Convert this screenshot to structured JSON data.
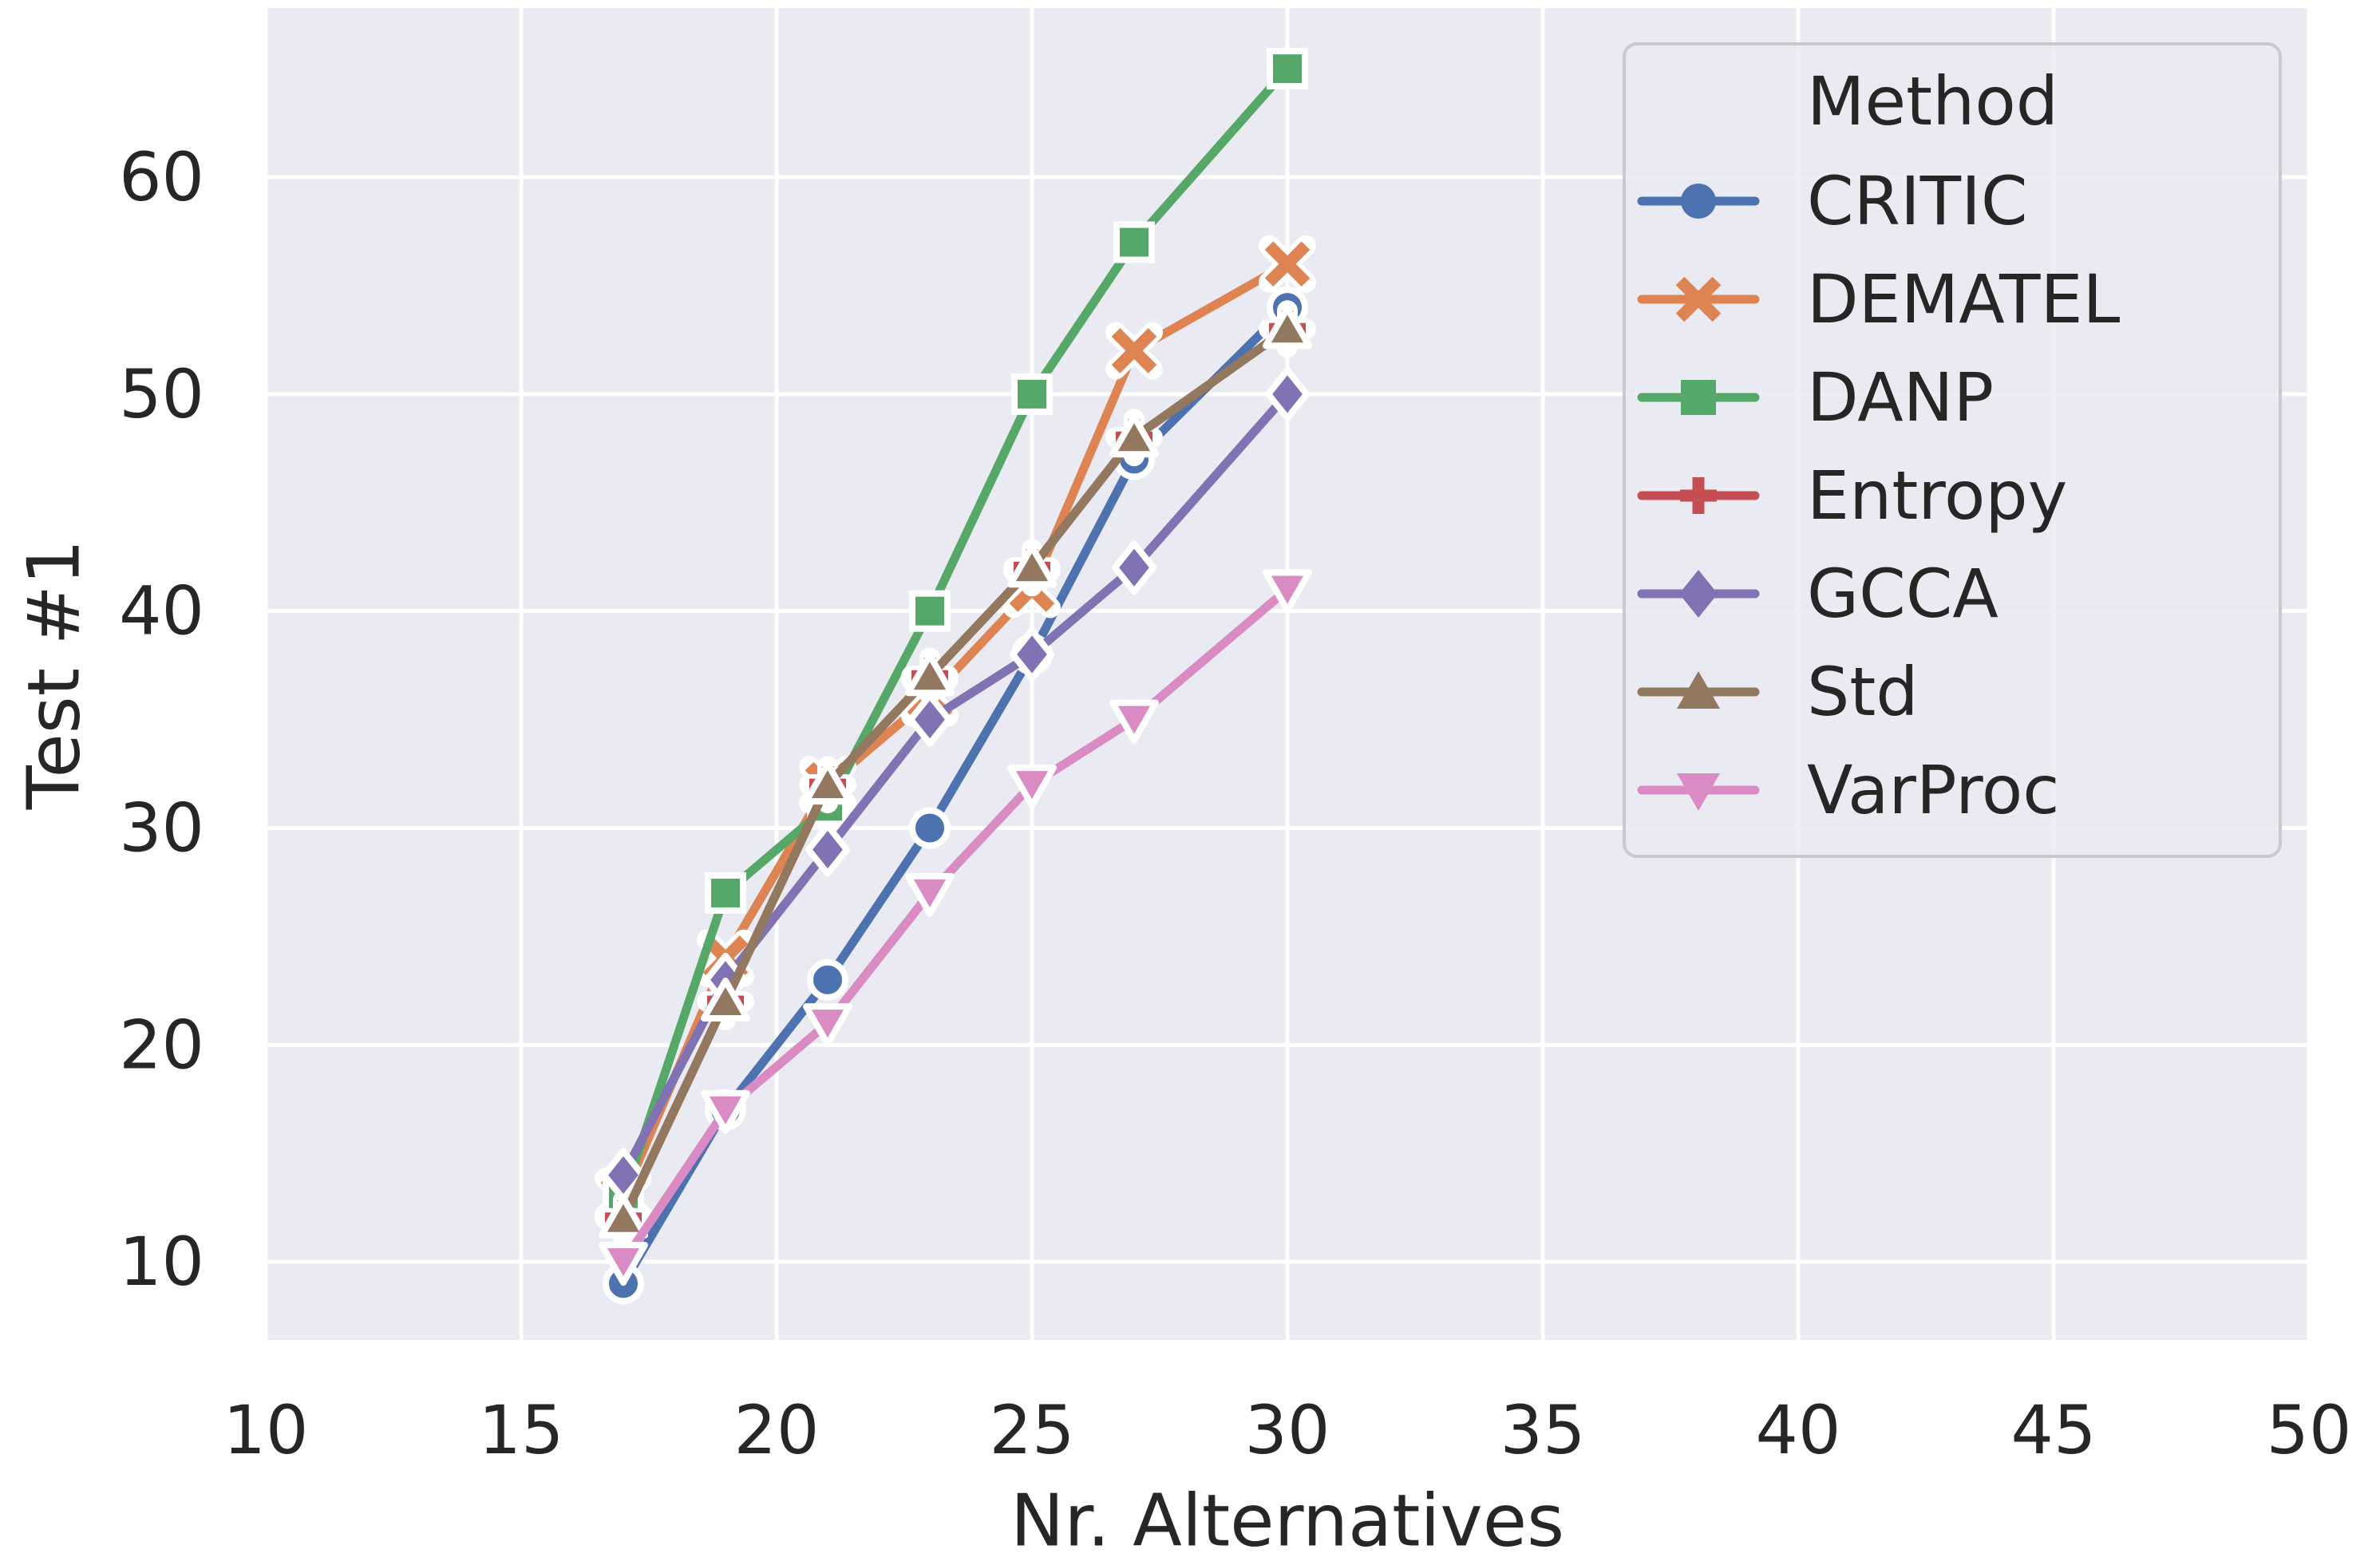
{
  "chart_data": {
    "type": "line",
    "title": "",
    "xlabel": "Nr. Alternatives",
    "ylabel": "Test #1",
    "x": [
      17,
      19,
      21,
      23,
      25,
      27,
      30
    ],
    "series": [
      {
        "name": "CRITIC",
        "color": "#4C72B0",
        "marker": "circle",
        "values": [
          9,
          17,
          23,
          30,
          38,
          47,
          54
        ]
      },
      {
        "name": "DEMATEL",
        "color": "#DD8452",
        "marker": "x",
        "values": [
          13,
          24,
          32,
          36,
          41,
          52,
          56
        ]
      },
      {
        "name": "DANP",
        "color": "#55A868",
        "marker": "square",
        "values": [
          13,
          27,
          31,
          40,
          50,
          57,
          65
        ]
      },
      {
        "name": "Entropy",
        "color": "#C44E52",
        "marker": "plus",
        "values": [
          12,
          22,
          32,
          37,
          42,
          48,
          53
        ]
      },
      {
        "name": "GCCA",
        "color": "#8172B3",
        "marker": "diamond",
        "values": [
          14,
          23,
          29,
          35,
          38,
          42,
          50
        ]
      },
      {
        "name": "Std",
        "color": "#937860",
        "marker": "triangle-up",
        "values": [
          12,
          22,
          32,
          37,
          42,
          48,
          53
        ]
      },
      {
        "name": "VarProc",
        "color": "#DA8BC3",
        "marker": "triangle-down",
        "values": [
          10,
          17,
          21,
          27,
          32,
          35,
          41
        ]
      }
    ],
    "xlim": [
      10,
      50
    ],
    "ylim": [
      6.4,
      67.8
    ],
    "xticks": [
      10,
      15,
      20,
      25,
      30,
      35,
      40,
      45,
      50
    ],
    "yticks": [
      10,
      20,
      30,
      40,
      50,
      60
    ],
    "grid": true,
    "legend": {
      "title": "Method",
      "position": "upper right"
    },
    "style": {
      "axes_bg": "#EAEAF2",
      "grid_color": "#FFFFFF",
      "text_color": "#262626",
      "marker_edge": "#FFFFFF",
      "legend_face": "#EAEAF2",
      "legend_edge": "#C9C9CE"
    }
  }
}
